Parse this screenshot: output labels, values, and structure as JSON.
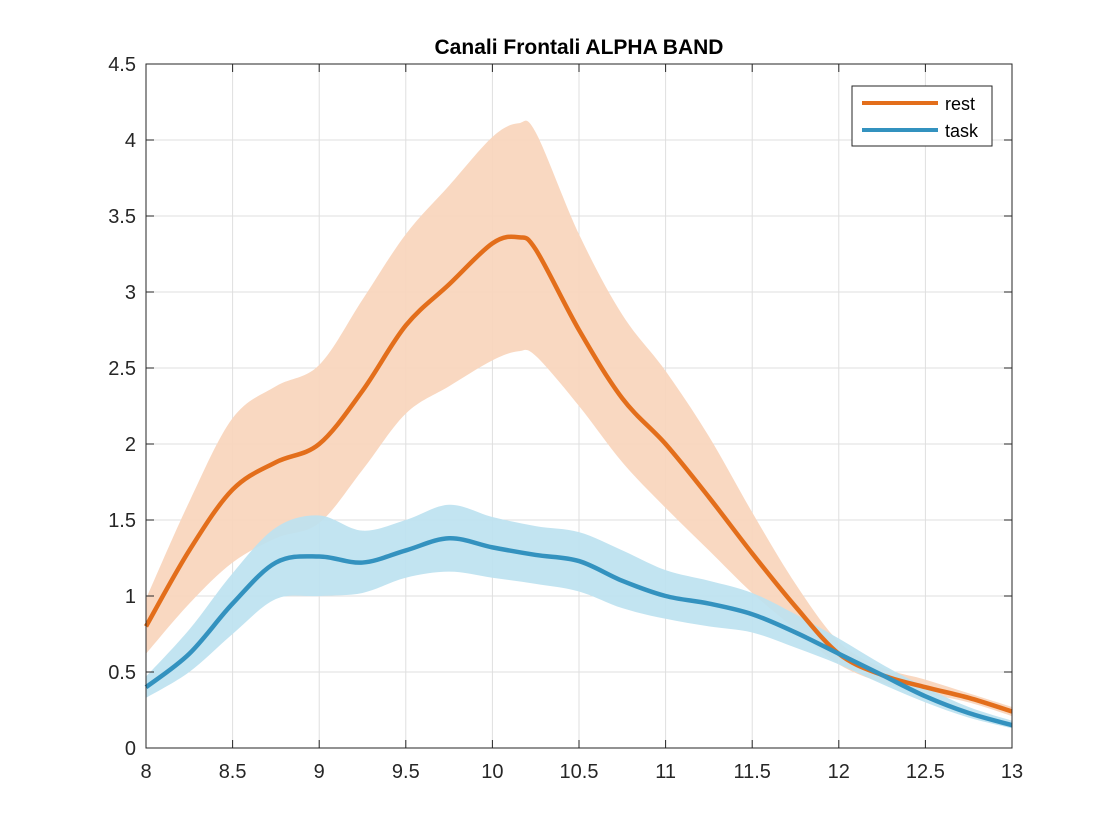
{
  "chart_data": {
    "type": "line",
    "title": "Canali Frontali ALPHA BAND",
    "xlabel": "",
    "ylabel": "",
    "xlim": [
      8,
      13
    ],
    "ylim": [
      0,
      4.5
    ],
    "xticks": [
      8,
      8.5,
      9,
      9.5,
      10,
      10.5,
      11,
      11.5,
      12,
      12.5,
      13
    ],
    "yticks": [
      0,
      0.5,
      1,
      1.5,
      2,
      2.5,
      3,
      3.5,
      4,
      4.5
    ],
    "xtick_labels": [
      "8",
      "8.5",
      "9",
      "9.5",
      "10",
      "10.5",
      "11",
      "11.5",
      "12",
      "12.5",
      "13"
    ],
    "ytick_labels": [
      "0",
      "0.5",
      "1",
      "1.5",
      "2",
      "2.5",
      "3",
      "3.5",
      "4",
      "4.5"
    ],
    "grid": true,
    "legend_position": "top-right",
    "series": [
      {
        "name": "rest",
        "color": "#E36E1B",
        "band_color": "#F8D5BC",
        "x": [
          8.0,
          8.25,
          8.5,
          8.75,
          9.0,
          9.25,
          9.5,
          9.75,
          10.0,
          10.15,
          10.25,
          10.5,
          10.75,
          11.0,
          11.25,
          11.5,
          11.75,
          12.0,
          12.25,
          12.5,
          12.75,
          13.0
        ],
        "y": [
          0.8,
          1.3,
          1.7,
          1.88,
          2.0,
          2.35,
          2.78,
          3.05,
          3.32,
          3.36,
          3.28,
          2.75,
          2.3,
          2.0,
          1.65,
          1.28,
          0.93,
          0.62,
          0.48,
          0.4,
          0.33,
          0.24
        ],
        "lower": [
          0.62,
          0.95,
          1.22,
          1.38,
          1.48,
          1.83,
          2.2,
          2.38,
          2.55,
          2.61,
          2.58,
          2.25,
          1.88,
          1.58,
          1.3,
          1.02,
          0.78,
          0.55,
          0.43,
          0.36,
          0.3,
          0.21
        ],
        "upper": [
          0.98,
          1.62,
          2.17,
          2.38,
          2.52,
          2.95,
          3.38,
          3.7,
          4.02,
          4.11,
          4.05,
          3.38,
          2.85,
          2.48,
          2.05,
          1.55,
          1.08,
          0.7,
          0.53,
          0.45,
          0.36,
          0.27
        ]
      },
      {
        "name": "task",
        "color": "#3392BF",
        "band_color": "#BDE2F0",
        "x": [
          8.0,
          8.25,
          8.5,
          8.75,
          9.0,
          9.25,
          9.5,
          9.75,
          10.0,
          10.25,
          10.5,
          10.75,
          11.0,
          11.25,
          11.5,
          11.75,
          12.0,
          12.25,
          12.5,
          12.75,
          13.0
        ],
        "y": [
          0.4,
          0.62,
          0.95,
          1.22,
          1.26,
          1.22,
          1.3,
          1.38,
          1.32,
          1.27,
          1.23,
          1.1,
          1.0,
          0.95,
          0.88,
          0.76,
          0.62,
          0.48,
          0.34,
          0.23,
          0.15
        ],
        "lower": [
          0.33,
          0.5,
          0.75,
          0.98,
          1.0,
          1.02,
          1.12,
          1.16,
          1.12,
          1.08,
          1.03,
          0.92,
          0.85,
          0.8,
          0.76,
          0.66,
          0.55,
          0.42,
          0.3,
          0.2,
          0.13
        ],
        "upper": [
          0.47,
          0.78,
          1.15,
          1.45,
          1.53,
          1.43,
          1.5,
          1.6,
          1.52,
          1.46,
          1.42,
          1.3,
          1.17,
          1.1,
          1.02,
          0.88,
          0.72,
          0.55,
          0.4,
          0.27,
          0.18
        ]
      }
    ]
  }
}
